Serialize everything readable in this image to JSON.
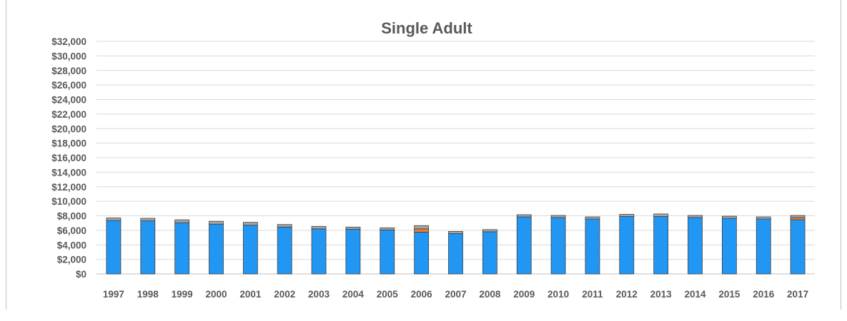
{
  "chart_data": {
    "type": "bar",
    "stacked": true,
    "title": "Single Adult",
    "xlabel": "",
    "ylabel": "",
    "ylim": [
      0,
      32000
    ],
    "y_tick_step": 2000,
    "y_tick_prefix": "$",
    "grid": true,
    "legend": "none",
    "categories": [
      "1997",
      "1998",
      "1999",
      "2000",
      "2001",
      "2002",
      "2003",
      "2004",
      "2005",
      "2006",
      "2007",
      "2008",
      "2009",
      "2010",
      "2011",
      "2012",
      "2013",
      "2014",
      "2015",
      "2016",
      "2017"
    ],
    "series": [
      {
        "color": "#2196f3",
        "values": [
          7350,
          7300,
          7050,
          6850,
          6700,
          6450,
          6200,
          6150,
          6050,
          5750,
          5550,
          5800,
          7850,
          7750,
          7550,
          7900,
          7900,
          7750,
          7650,
          7550,
          7450
        ]
      },
      {
        "color": "#ed7d31",
        "values": [
          0,
          0,
          0,
          0,
          0,
          0,
          0,
          0,
          0,
          450,
          0,
          0,
          0,
          0,
          0,
          0,
          0,
          0,
          0,
          0,
          300
        ]
      },
      {
        "color": "#a5a5a5",
        "values": [
          350,
          350,
          400,
          400,
          400,
          350,
          350,
          300,
          300,
          450,
          300,
          300,
          300,
          300,
          300,
          300,
          350,
          300,
          300,
          300,
          300
        ]
      }
    ]
  }
}
